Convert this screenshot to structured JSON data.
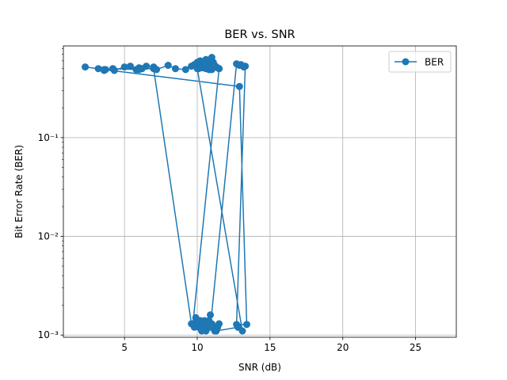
{
  "chart_data": {
    "type": "line",
    "title": "BER vs. SNR",
    "xlabel": "SNR (dB)",
    "ylabel": "Bit Error Rate (BER)",
    "xlim": [
      0.8,
      27.8
    ],
    "ylim": [
      0.00095,
      0.85
    ],
    "yscale": "log",
    "grid": true,
    "legend_position": "top-right",
    "x_ticks": [
      5,
      10,
      15,
      20,
      25
    ],
    "x_tick_labels": [
      "5",
      "10",
      "15",
      "20",
      "25"
    ],
    "y_ticks": [
      0.001,
      0.01,
      0.1
    ],
    "y_tick_labels": [
      "10⁻³",
      "10⁻²",
      "10⁻¹"
    ],
    "color": "#1f77b4",
    "series": [
      {
        "name": "BER",
        "x": [
          2.3,
          3.2,
          3.6,
          3.7,
          4.2,
          4.3,
          5.0,
          5.4,
          5.8,
          6.0,
          6.2,
          6.5,
          7.0,
          7.2,
          8.0,
          8.5,
          9.2,
          9.6,
          9.8,
          10.0,
          10.1,
          10.2,
          10.3,
          10.4,
          10.5,
          10.6,
          10.7,
          10.8,
          10.9,
          11.0,
          11.1,
          11.2,
          11.3,
          11.5,
          9.7,
          9.9,
          10.1,
          10.3,
          10.5,
          10.7,
          10.9,
          11.1,
          11.3,
          11.5,
          9.8,
          10.2,
          10.6,
          11.0,
          11.4,
          10.0,
          10.4,
          10.8,
          11.2,
          10.5,
          10.9,
          12.7,
          12.9,
          13.0,
          13.2,
          13.3,
          12.7,
          13.4,
          12.9,
          3.6,
          4.2,
          6.0,
          6.2,
          7.0,
          9.6,
          10.3,
          11.3,
          12.8,
          13.1,
          10.0,
          10.4,
          10.8,
          11.1,
          11.5,
          10.2,
          10.6,
          11.0,
          10.7,
          11.4,
          10.1,
          10.9
        ],
        "y": [
          0.52,
          0.5,
          0.48,
          0.49,
          0.5,
          0.48,
          0.52,
          0.53,
          0.49,
          0.51,
          0.5,
          0.53,
          0.52,
          0.49,
          0.54,
          0.5,
          0.49,
          0.53,
          0.55,
          0.58,
          0.52,
          0.6,
          0.56,
          0.54,
          0.58,
          0.62,
          0.57,
          0.55,
          0.6,
          0.65,
          0.58,
          0.54,
          0.52,
          0.5,
          0.0013,
          0.0015,
          0.0012,
          0.0011,
          0.0014,
          0.0013,
          0.0016,
          0.0012,
          0.0011,
          0.0013,
          0.0012,
          0.0014,
          0.0011,
          0.0013,
          0.0012,
          0.0013,
          0.0012,
          0.0014,
          0.0011,
          0.0013,
          0.0012,
          0.56,
          0.54,
          0.55,
          0.52,
          0.53,
          0.00128,
          0.00128,
          0.33,
          0.49,
          0.5,
          0.49,
          0.5,
          0.5,
          0.0013,
          0.0012,
          0.0011,
          0.0012,
          0.0011,
          0.5,
          0.51,
          0.49,
          0.52,
          0.5,
          0.51,
          0.5,
          0.49,
          0.5,
          0.51,
          0.5,
          0.49
        ]
      }
    ]
  }
}
